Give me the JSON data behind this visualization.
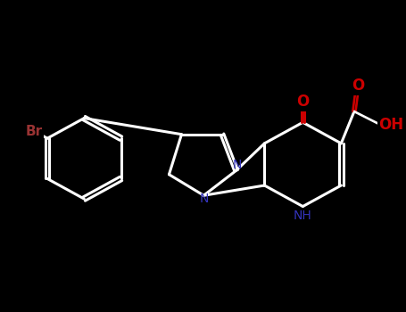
{
  "background_color": "#000000",
  "bond_color": "#ffffff",
  "nitrogen_color": "#3333bb",
  "oxygen_color": "#cc0000",
  "bromine_color": "#993333",
  "oh_color": "#cc0000",
  "line_width": 2.2,
  "dbo": 0.025,
  "fig_width": 4.55,
  "fig_height": 3.5,
  "dpi": 100,
  "xlim": [
    -2.6,
    2.6
  ],
  "ylim": [
    -1.9,
    1.9
  ]
}
